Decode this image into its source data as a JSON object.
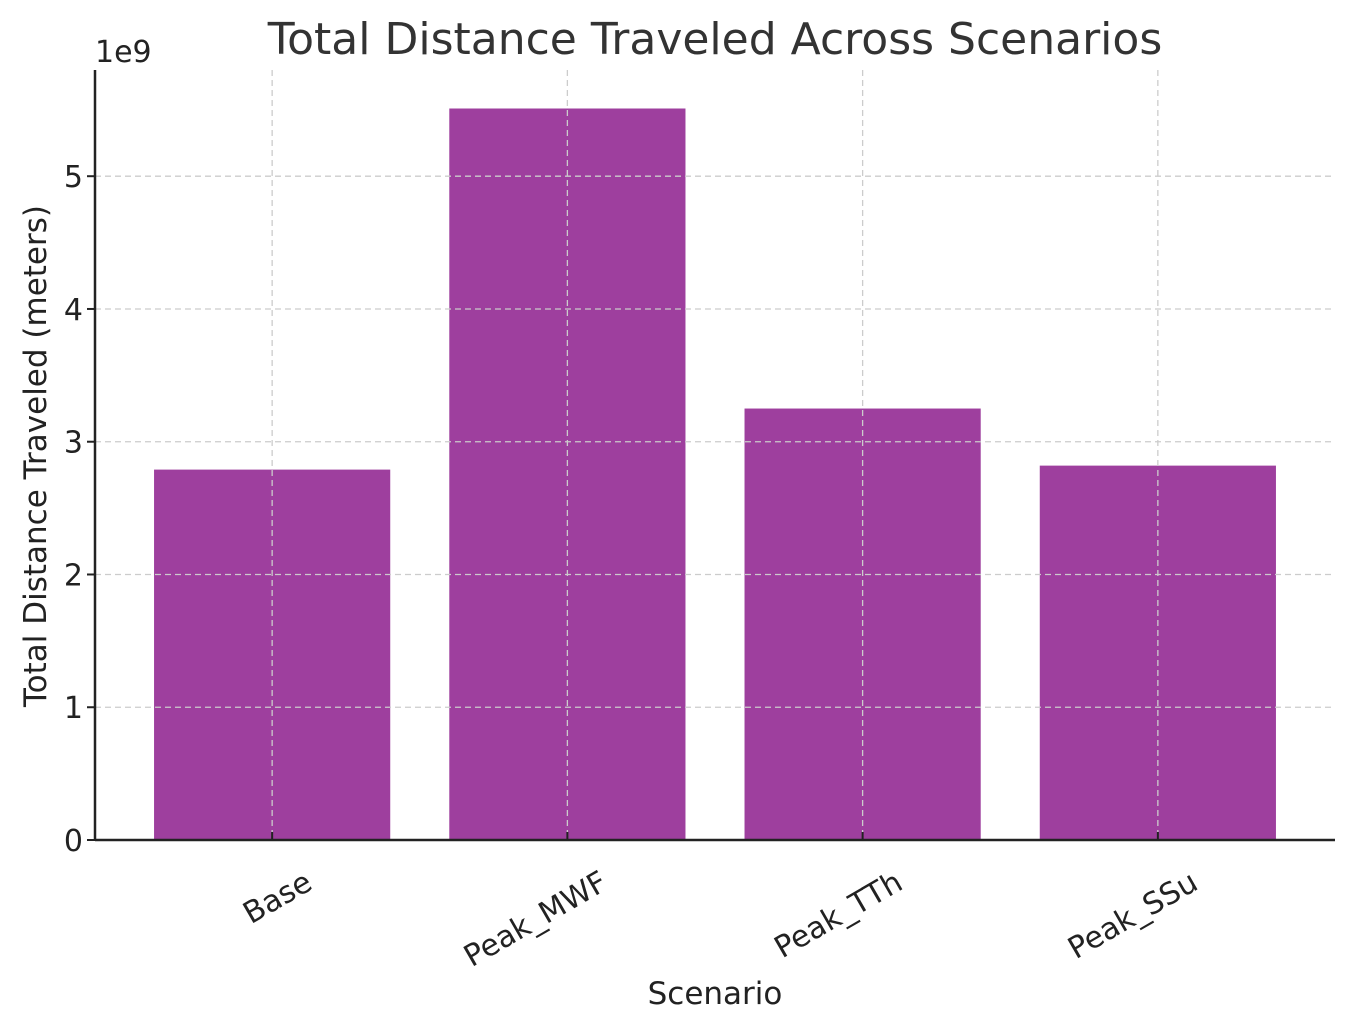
{
  "chart_data": {
    "type": "bar",
    "title": "Total Distance Traveled Across Scenarios",
    "xlabel": "Scenario",
    "ylabel": "Total Distance Traveled (meters)",
    "y_scale_label": "1e9",
    "categories": [
      "Base",
      "Peak_MWF",
      "Peak_TTh",
      "Peak_SSu"
    ],
    "values": [
      2.79,
      5.51,
      3.25,
      2.82
    ],
    "value_multiplier": 1000000000,
    "ylim": [
      0,
      5.8
    ],
    "yticks": [
      0,
      1,
      2,
      3,
      4,
      5
    ],
    "ytick_labels": [
      "0",
      "1",
      "2",
      "3",
      "4",
      "5"
    ],
    "grid": true,
    "bar_color": "#9e3f9e",
    "xtick_rotation_deg": -30
  }
}
